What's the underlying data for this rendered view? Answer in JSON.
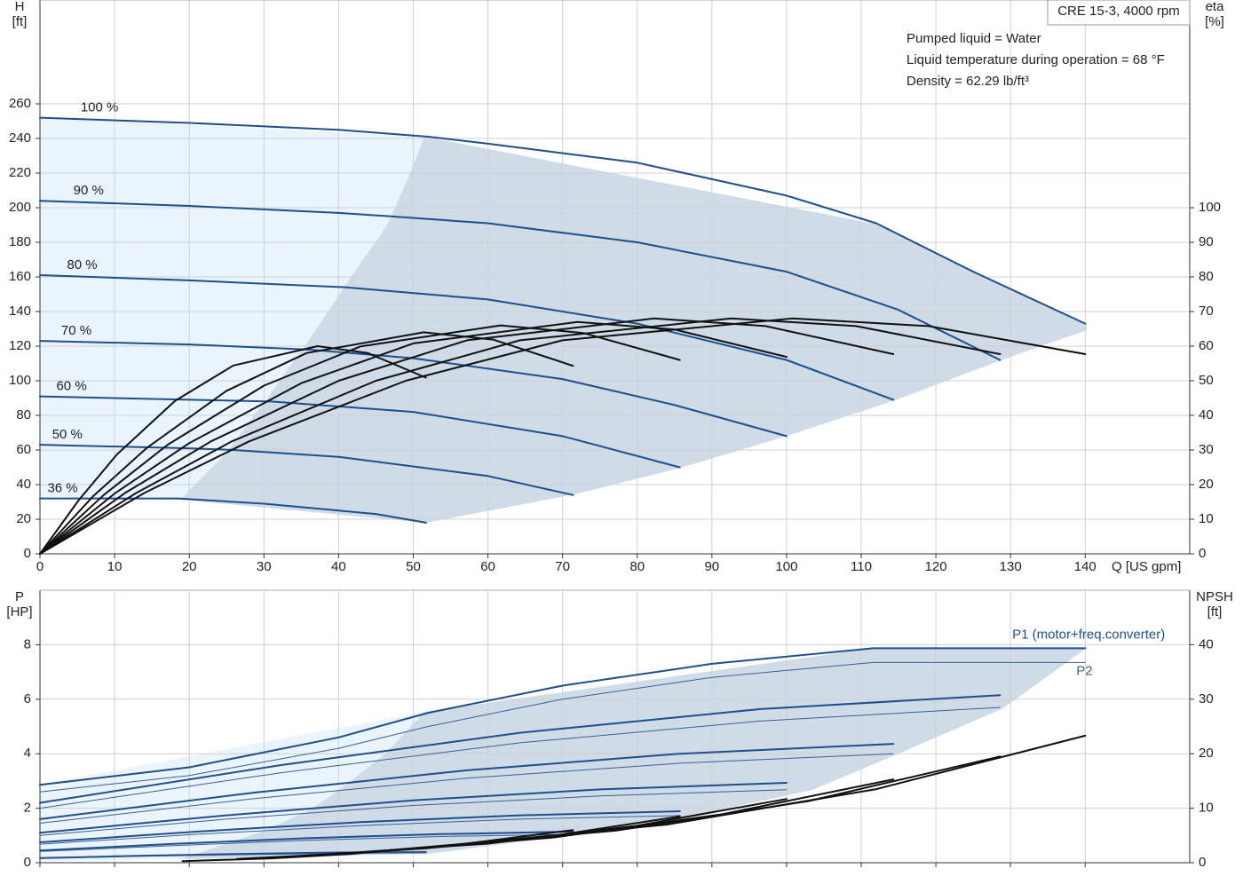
{
  "chart_data": [
    {
      "type": "line",
      "title": "CRE 15-3, 4000 rpm",
      "annotations": [
        "Pumped liquid = Water",
        "Liquid temperature during operation = 68 °F",
        "Density = 62.29 lb/ft³"
      ],
      "ylabel": [
        "H",
        "[ft]"
      ],
      "y2label": [
        "eta",
        "[%]"
      ],
      "xlabel": "Q [US gpm]",
      "xlim": [
        0,
        154
      ],
      "xticks": [
        0,
        10,
        20,
        30,
        40,
        50,
        60,
        70,
        80,
        90,
        100,
        110,
        120,
        130,
        140
      ],
      "xtick_labels": true,
      "ylim": [
        0,
        320
      ],
      "yticks": [
        0,
        20,
        40,
        60,
        80,
        100,
        120,
        140,
        160,
        180,
        200,
        220,
        240,
        260
      ],
      "y2lim": [
        0,
        160
      ],
      "y2ticks": [
        0,
        10,
        20,
        30,
        40,
        50,
        60,
        70,
        80,
        90,
        100
      ],
      "grid": true,
      "series": [
        {
          "name": "100 %",
          "color": "#1f4e8c",
          "x": [
            0,
            20,
            40,
            52,
            60,
            80,
            100,
            112,
            125,
            140
          ],
          "values": [
            252,
            249,
            245,
            241,
            237,
            226,
            207,
            191,
            163,
            133
          ]
        },
        {
          "name": "90 %",
          "color": "#1f4e8c",
          "x": [
            0,
            20,
            40,
            47,
            60,
            80,
            100,
            115,
            128.6
          ],
          "values": [
            204,
            201,
            197,
            195,
            191,
            180,
            163,
            141,
            112
          ]
        },
        {
          "name": "80 %",
          "color": "#1f4e8c",
          "x": [
            0,
            20,
            41,
            60,
            80,
            100,
            114.3
          ],
          "values": [
            161,
            158,
            154,
            147,
            133,
            112,
            89
          ]
        },
        {
          "name": "70 %",
          "color": "#1f4e8c",
          "x": [
            0,
            20,
            36,
            50,
            70,
            85,
            100
          ],
          "values": [
            123,
            121,
            118,
            113,
            101,
            86,
            68
          ]
        },
        {
          "name": "60 %",
          "color": "#1f4e8c",
          "x": [
            0,
            20,
            31,
            50,
            70,
            85.7
          ],
          "values": [
            91,
            89,
            88,
            82,
            68,
            50
          ]
        },
        {
          "name": "50 %",
          "color": "#1f4e8c",
          "x": [
            0,
            20,
            26,
            40,
            60,
            71.4
          ],
          "values": [
            63,
            61,
            60,
            56,
            45,
            34
          ]
        },
        {
          "name": "36 %",
          "color": "#1f4e8c",
          "x": [
            0,
            18.5,
            30,
            45,
            51.7
          ],
          "values": [
            32,
            32,
            29,
            23,
            18
          ]
        },
        {
          "axis": "y2",
          "color": "#111111",
          "x": [
            0,
            14,
            28,
            49,
            70,
            100.8,
            119,
            140
          ],
          "values": [
            0,
            17.6,
            32.5,
            50,
            61.7,
            68,
            65.8,
            57.7
          ]
        },
        {
          "axis": "y2",
          "color": "#111111",
          "x": [
            0,
            12.9,
            25.7,
            45,
            64.3,
            92.6,
            109.3,
            128.6
          ],
          "values": [
            0,
            17.6,
            32.5,
            50,
            61.7,
            68,
            65.8,
            57.7
          ]
        },
        {
          "axis": "y2",
          "color": "#111111",
          "x": [
            0,
            11.4,
            22.9,
            40,
            57.2,
            82.3,
            97.2,
            114.3
          ],
          "values": [
            0,
            17.6,
            32.5,
            50,
            61.7,
            68,
            65.8,
            57.7
          ]
        },
        {
          "axis": "y2",
          "color": "#111111",
          "x": [
            0,
            10,
            20,
            35,
            50,
            72,
            85,
            100
          ],
          "values": [
            0,
            17.4,
            32,
            49.3,
            60.8,
            67,
            64.8,
            56.9
          ]
        },
        {
          "axis": "y2",
          "color": "#111111",
          "x": [
            0,
            8.6,
            17.1,
            30,
            42.9,
            61.7,
            72.8,
            85.7
          ],
          "values": [
            0,
            17.1,
            31.5,
            48.6,
            59.9,
            66,
            63.8,
            56
          ]
        },
        {
          "axis": "y2",
          "color": "#111111",
          "x": [
            0,
            7.1,
            14.3,
            25,
            35.7,
            51.4,
            60.7,
            71.4
          ],
          "values": [
            0,
            16.6,
            30.6,
            47.1,
            58,
            64,
            61.9,
            54.3
          ]
        },
        {
          "axis": "y2",
          "color": "#111111",
          "x": [
            0,
            5.2,
            10.3,
            18.1,
            25.9,
            37.2,
            43.9,
            51.7
          ],
          "values": [
            0,
            15.5,
            28.7,
            44.2,
            54.4,
            60,
            58,
            50.9
          ]
        }
      ]
    },
    {
      "type": "line",
      "ylabel": [
        "P",
        "[HP]"
      ],
      "y2label": [
        "NPSH",
        "[ft]"
      ],
      "xlim": [
        0,
        154
      ],
      "xticks": [
        0,
        10,
        20,
        30,
        40,
        50,
        60,
        70,
        80,
        90,
        100,
        110,
        120,
        130,
        140
      ],
      "xtick_labels": false,
      "ylim": [
        0,
        10
      ],
      "yticks": [
        0,
        2,
        4,
        6,
        8
      ],
      "y2lim": [
        0,
        50
      ],
      "y2ticks": [
        0,
        10,
        20,
        30,
        40
      ],
      "grid": true,
      "series": [
        {
          "name": "P1 (motor+freq.converter)",
          "color": "#1f4e8c",
          "x": [
            0,
            20,
            40,
            52,
            70,
            90,
            111.6,
            140
          ],
          "values": [
            2.86,
            3.5,
            4.6,
            5.5,
            6.5,
            7.3,
            7.87,
            7.87
          ]
        },
        {
          "color": "#1f4e8c",
          "x": [
            0,
            32.2,
            64.3,
            96.5,
            128.6
          ],
          "values": [
            2.2,
            3.58,
            4.77,
            5.64,
            6.15
          ]
        },
        {
          "color": "#1f4e8c",
          "x": [
            0,
            28.6,
            57.2,
            85.7,
            114.3
          ],
          "values": [
            1.6,
            2.57,
            3.39,
            4.0,
            4.36
          ]
        },
        {
          "color": "#1f4e8c",
          "x": [
            0,
            25,
            50,
            75,
            100
          ],
          "values": [
            1.1,
            1.74,
            2.29,
            2.69,
            2.93
          ]
        },
        {
          "color": "#1f4e8c",
          "x": [
            0,
            21.4,
            42.9,
            64.3,
            85.7
          ],
          "values": [
            0.75,
            1.15,
            1.49,
            1.74,
            1.89
          ]
        },
        {
          "color": "#1f4e8c",
          "x": [
            0,
            17.9,
            35.7,
            53.6,
            71.4
          ],
          "values": [
            0.45,
            0.69,
            0.9,
            1.05,
            1.14
          ]
        },
        {
          "color": "#1f4e8c",
          "x": [
            0,
            12.9,
            25.9,
            38.8,
            51.7
          ],
          "values": [
            0.17,
            0.25,
            0.32,
            0.37,
            0.39
          ]
        },
        {
          "name": "P2",
          "color": "#3a5f94",
          "thin": true,
          "x": [
            0,
            20,
            40,
            52,
            70,
            90,
            111.6,
            140
          ],
          "values": [
            2.6,
            3.2,
            4.2,
            5.0,
            6.0,
            6.8,
            7.35,
            7.35
          ]
        },
        {
          "color": "#3a5f94",
          "thin": true,
          "x": [
            0,
            32.2,
            64.3,
            96.5,
            128.6
          ],
          "values": [
            2.0,
            3.3,
            4.4,
            5.2,
            5.7
          ]
        },
        {
          "color": "#3a5f94",
          "thin": true,
          "x": [
            0,
            28.6,
            57.2,
            85.7,
            114.3
          ],
          "values": [
            1.45,
            2.35,
            3.1,
            3.65,
            4.0
          ]
        },
        {
          "color": "#3a5f94",
          "thin": true,
          "x": [
            0,
            25,
            50,
            75,
            100
          ],
          "values": [
            1.0,
            1.6,
            2.1,
            2.45,
            2.68
          ]
        },
        {
          "color": "#3a5f94",
          "thin": true,
          "x": [
            0,
            21.4,
            42.9,
            64.3,
            85.7
          ],
          "values": [
            0.68,
            1.05,
            1.36,
            1.6,
            1.73
          ]
        },
        {
          "color": "#3a5f94",
          "thin": true,
          "x": [
            0,
            17.9,
            35.7,
            53.6,
            71.4
          ],
          "values": [
            0.41,
            0.63,
            0.82,
            0.96,
            1.04
          ]
        },
        {
          "color": "#3a5f94",
          "thin": true,
          "x": [
            0,
            12.9,
            25.9,
            38.8,
            51.7
          ],
          "values": [
            0.15,
            0.23,
            0.29,
            0.34,
            0.36
          ]
        },
        {
          "axis": "y2",
          "color": "#111111",
          "x": [
            51.8,
            84,
            112,
            140
          ],
          "values": [
            2.8,
            7.0,
            13.5,
            23.3
          ]
        },
        {
          "axis": "y2",
          "color": "#111111",
          "x": [
            47.6,
            77.2,
            102.9,
            128.6
          ],
          "values": [
            2.3,
            5.9,
            11.3,
            19.5
          ]
        },
        {
          "axis": "y2",
          "color": "#111111",
          "x": [
            42.3,
            68.6,
            91.4,
            114.3
          ],
          "values": [
            1.8,
            4.6,
            8.9,
            15.3
          ]
        },
        {
          "axis": "y2",
          "color": "#111111",
          "x": [
            37,
            60,
            80,
            100
          ],
          "values": [
            1.4,
            3.5,
            6.8,
            11.7
          ]
        },
        {
          "axis": "y2",
          "color": "#111111",
          "x": [
            31.7,
            51.4,
            68.6,
            85.7
          ],
          "values": [
            1.0,
            2.6,
            4.9,
            8.5
          ]
        },
        {
          "axis": "y2",
          "color": "#111111",
          "x": [
            26.4,
            42.8,
            57.1,
            71.4
          ],
          "values": [
            0.7,
            1.8,
            3.5,
            6.0
          ]
        },
        {
          "axis": "y2",
          "color": "#111111",
          "x": [
            19.1,
            31,
            41.4,
            51.7
          ],
          "values": [
            0.3,
            0.8,
            1.6,
            2.8
          ]
        }
      ]
    }
  ]
}
